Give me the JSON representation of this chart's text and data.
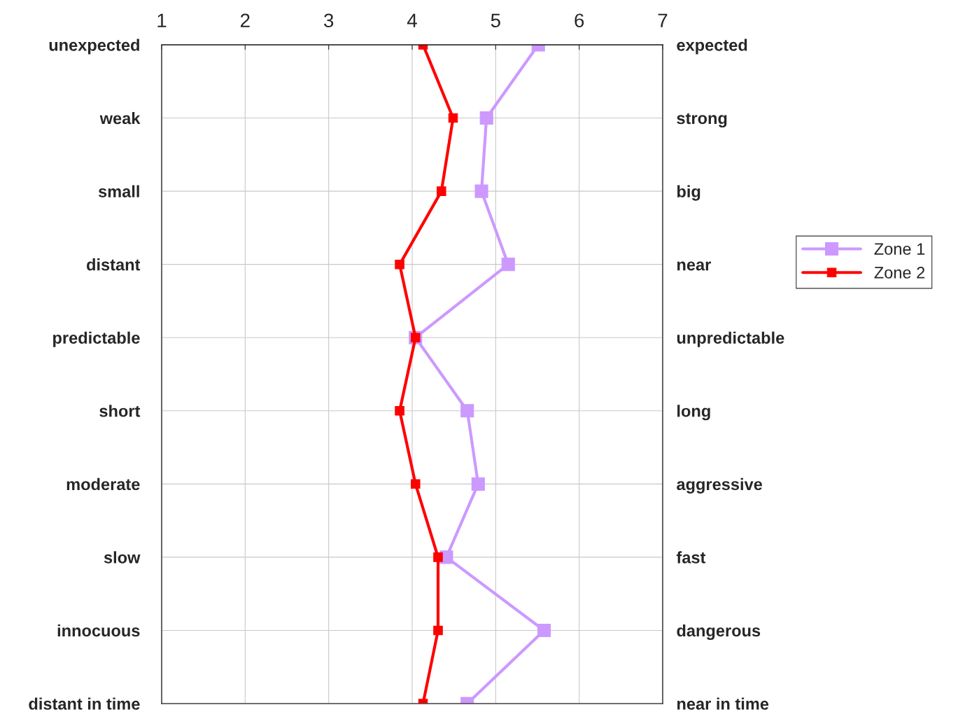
{
  "chart_data": {
    "type": "line",
    "orientation": "horizontal",
    "categories": [
      "unexpected",
      "weak",
      "small",
      "distant",
      "predictable",
      "short",
      "moderate",
      "slow",
      "innocuous",
      "distant in time"
    ],
    "y2_categories": [
      "expected",
      "strong",
      "big",
      "near",
      "unpredictable",
      "long",
      "aggressive",
      "fast",
      "dangerous",
      "near in time"
    ],
    "series": [
      {
        "name": "Zone 1",
        "color": "#cc99ff",
        "values": [
          5.51,
          4.89,
          4.83,
          5.15,
          4.04,
          4.66,
          4.79,
          4.41,
          5.58,
          4.66
        ]
      },
      {
        "name": "Zone 2",
        "color": "#ff0000",
        "values": [
          4.13,
          4.49,
          4.35,
          3.85,
          4.04,
          3.85,
          4.04,
          4.31,
          4.31,
          4.13
        ]
      }
    ],
    "xlim": [
      1,
      7
    ],
    "xticks": [
      1,
      2,
      3,
      4,
      5,
      6,
      7
    ],
    "grid": true,
    "legend": "right",
    "marker": "square",
    "line_style": "solid"
  }
}
